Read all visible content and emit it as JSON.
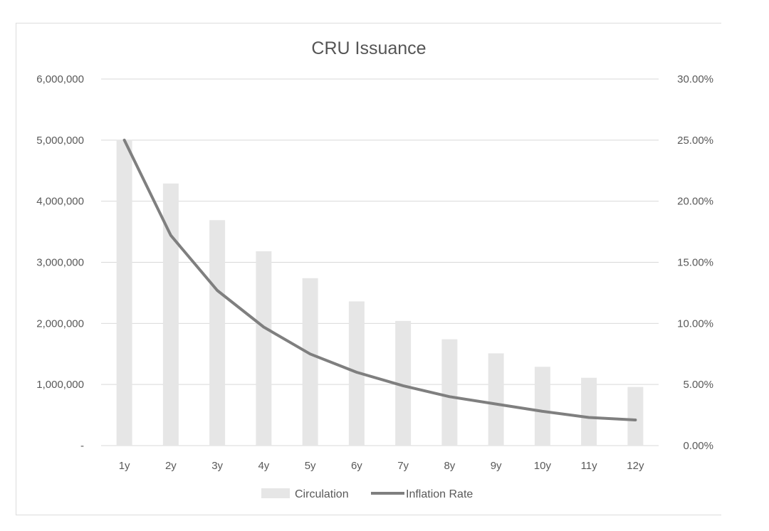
{
  "chart_data": {
    "type": "bar",
    "title": "CRU Issuance",
    "categories": [
      "1y",
      "2y",
      "3y",
      "4y",
      "5y",
      "6y",
      "7y",
      "8y",
      "9y",
      "10y",
      "11y",
      "12y"
    ],
    "series": [
      {
        "name": "Circulation",
        "type": "bar",
        "axis": "left",
        "color": "#e6e6e6",
        "values": [
          5000000,
          4290000,
          3690000,
          3180000,
          2740000,
          2360000,
          2040000,
          1740000,
          1510000,
          1290000,
          1110000,
          960000
        ]
      },
      {
        "name": "Inflation Rate",
        "type": "line",
        "axis": "right",
        "color": "#7f7f7f",
        "values": [
          0.25,
          0.172,
          0.127,
          0.097,
          0.075,
          0.06,
          0.049,
          0.04,
          0.034,
          0.028,
          0.023,
          0.021
        ]
      }
    ],
    "y_left": {
      "ylim": [
        0,
        6000000
      ],
      "ticks": [
        0,
        1000000,
        2000000,
        3000000,
        4000000,
        5000000,
        6000000
      ],
      "tick_labels": [
        "-",
        "1,000,000",
        "2,000,000",
        "3,000,000",
        "4,000,000",
        "5,000,000",
        "6,000,000"
      ]
    },
    "y_right": {
      "ylim": [
        0,
        0.3
      ],
      "ticks": [
        0,
        0.05,
        0.1,
        0.15,
        0.2,
        0.25,
        0.3
      ],
      "tick_labels": [
        "0.00%",
        "5.00%",
        "10.00%",
        "15.00%",
        "20.00%",
        "25.00%",
        "30.00%"
      ]
    },
    "grid": true,
    "legend": "bottom",
    "xlabel": "",
    "ylabel": ""
  }
}
